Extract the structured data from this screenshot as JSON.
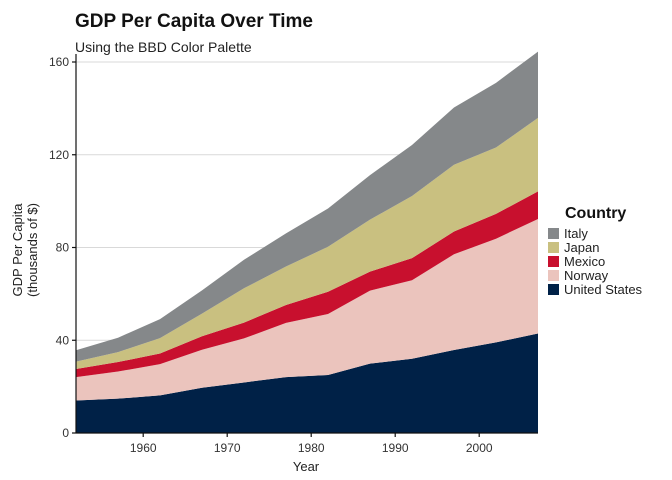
{
  "chart_data": {
    "type": "area",
    "stacked": true,
    "title": "GDP Per Capita Over Time",
    "subtitle": "Using the BBD Color Palette",
    "xlabel": "Year",
    "ylabel": [
      "GDP Per Capita",
      "(thousands of $)"
    ],
    "xlim": [
      1952,
      2007
    ],
    "ylim": [
      0,
      160
    ],
    "xticks": [
      1960,
      1970,
      1980,
      1990,
      2000
    ],
    "yticks": [
      0,
      40,
      80,
      120,
      160
    ],
    "grid": true,
    "legend_title": "Country",
    "legend_position": "right",
    "x": [
      1952,
      1957,
      1962,
      1967,
      1972,
      1977,
      1982,
      1987,
      1992,
      1997,
      2002,
      2007
    ],
    "series": [
      {
        "name": "Italy",
        "color": "#85888a",
        "values": [
          4.9,
          6.2,
          8.2,
          10.0,
          12.3,
          14.3,
          16.5,
          19.2,
          22.0,
          24.7,
          27.9,
          28.6
        ]
      },
      {
        "name": "Japan",
        "color": "#c9c080",
        "values": [
          3.2,
          4.3,
          6.6,
          9.8,
          14.8,
          16.6,
          19.4,
          22.4,
          26.8,
          28.8,
          28.6,
          31.7
        ]
      },
      {
        "name": "Mexico",
        "color": "#c8102e",
        "values": [
          3.5,
          4.1,
          4.6,
          5.8,
          6.8,
          7.7,
          9.6,
          8.2,
          9.5,
          9.8,
          10.7,
          11.9
        ]
      },
      {
        "name": "Norway",
        "color": "#ebc4bd",
        "values": [
          10.1,
          11.7,
          13.5,
          16.4,
          19.0,
          23.4,
          26.3,
          31.5,
          33.9,
          41.3,
          44.7,
          49.4
        ]
      },
      {
        "name": "United States",
        "color": "#002147",
        "values": [
          14.0,
          14.8,
          16.2,
          19.5,
          21.8,
          24.1,
          25.0,
          29.9,
          32.0,
          35.8,
          39.1,
          42.9
        ]
      }
    ]
  }
}
